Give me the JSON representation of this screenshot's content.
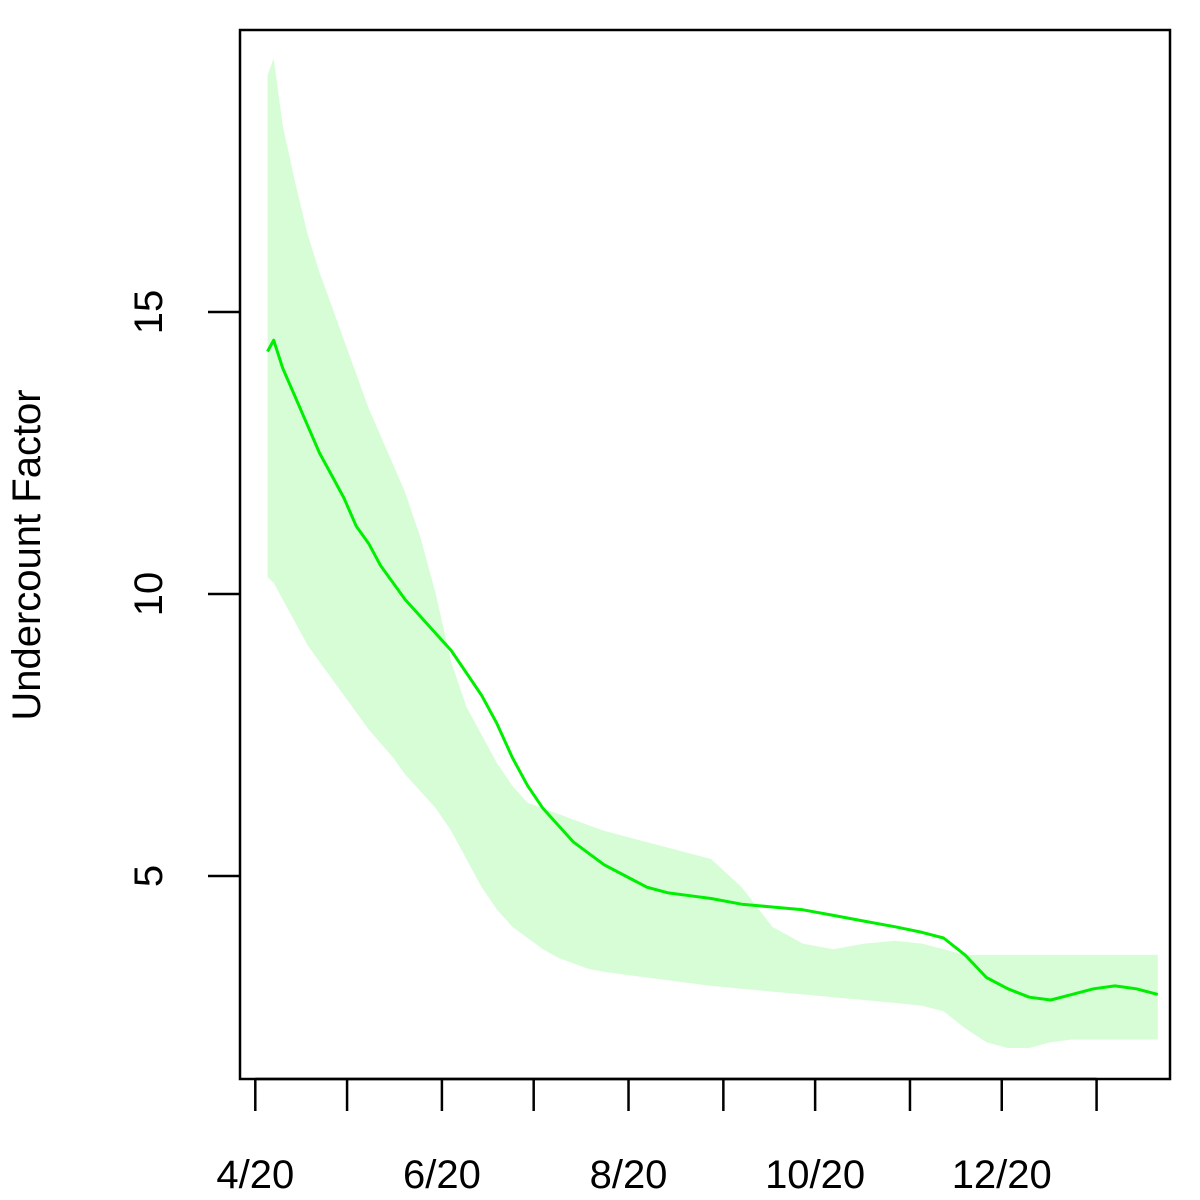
{
  "chart_data": {
    "type": "line",
    "title": "",
    "xlabel": "",
    "ylabel": "Undercount Factor",
    "xlim": [
      "2020-03-27",
      "2021-01-25"
    ],
    "ylim": [
      1.4,
      20.0
    ],
    "grid": false,
    "legend": "none",
    "x_ticks": [
      {
        "date": "2020-04-01",
        "label": "4/20"
      },
      {
        "date": "2020-05-01",
        "label": ""
      },
      {
        "date": "2020-06-01",
        "label": "6/20"
      },
      {
        "date": "2020-07-01",
        "label": ""
      },
      {
        "date": "2020-08-01",
        "label": "8/20"
      },
      {
        "date": "2020-09-01",
        "label": ""
      },
      {
        "date": "2020-10-01",
        "label": "10/20"
      },
      {
        "date": "2020-11-01",
        "label": ""
      },
      {
        "date": "2020-12-01",
        "label": "12/20"
      },
      {
        "date": "2021-01-01",
        "label": ""
      }
    ],
    "y_ticks": [
      5,
      10,
      15
    ],
    "colors": {
      "line": "#00ee00",
      "band": "#d7fdd7"
    },
    "series": [
      {
        "x": [
          "2020-04-05",
          "2020-04-07",
          "2020-04-10",
          "2020-04-14",
          "2020-04-18",
          "2020-04-22",
          "2020-04-26",
          "2020-04-30",
          "2020-05-04",
          "2020-05-08",
          "2020-05-12",
          "2020-05-16",
          "2020-05-20",
          "2020-05-25",
          "2020-05-30",
          "2020-06-04",
          "2020-06-09",
          "2020-06-14",
          "2020-06-19",
          "2020-06-24",
          "2020-06-29",
          "2020-07-04",
          "2020-07-09",
          "2020-07-14",
          "2020-07-19",
          "2020-07-24",
          "2020-07-31",
          "2020-08-07",
          "2020-08-14",
          "2020-08-21",
          "2020-08-28",
          "2020-09-07",
          "2020-09-17",
          "2020-09-27",
          "2020-10-07",
          "2020-10-17",
          "2020-10-27",
          "2020-11-05",
          "2020-11-12",
          "2020-11-19",
          "2020-11-26",
          "2020-12-03",
          "2020-12-10",
          "2020-12-17",
          "2020-12-24",
          "2020-12-31",
          "2021-01-07",
          "2021-01-14",
          "2021-01-21"
        ],
        "y": [
          14.3,
          14.5,
          14.0,
          13.5,
          13.0,
          12.5,
          12.1,
          11.7,
          11.2,
          10.9,
          10.5,
          10.2,
          9.9,
          9.6,
          9.3,
          9.0,
          8.6,
          8.2,
          7.7,
          7.1,
          6.6,
          6.2,
          5.9,
          5.6,
          5.4,
          5.2,
          5.0,
          4.8,
          4.7,
          4.65,
          4.6,
          4.5,
          4.45,
          4.4,
          4.3,
          4.2,
          4.1,
          4.0,
          3.9,
          3.6,
          3.2,
          3.0,
          2.85,
          2.8,
          2.9,
          3.0,
          3.05,
          3.0,
          2.9
        ]
      }
    ],
    "band": {
      "upper": [
        19.2,
        19.5,
        18.3,
        17.3,
        16.4,
        15.7,
        15.1,
        14.5,
        13.9,
        13.3,
        12.8,
        12.3,
        11.8,
        11.0,
        10.0,
        8.8,
        8.0,
        7.5,
        7.0,
        6.6,
        6.3,
        6.2,
        6.1,
        6.0,
        5.9,
        5.8,
        5.7,
        5.6,
        5.5,
        5.4,
        5.3,
        4.8,
        4.1,
        3.8,
        3.7,
        3.8,
        3.85,
        3.8,
        3.7,
        3.6,
        3.6,
        3.6,
        3.6,
        3.6,
        3.6,
        3.6,
        3.6,
        3.6,
        3.6
      ],
      "lower": [
        10.3,
        10.2,
        9.9,
        9.5,
        9.1,
        8.8,
        8.5,
        8.2,
        7.9,
        7.6,
        7.35,
        7.1,
        6.8,
        6.5,
        6.2,
        5.8,
        5.3,
        4.8,
        4.4,
        4.1,
        3.9,
        3.7,
        3.55,
        3.45,
        3.35,
        3.3,
        3.25,
        3.2,
        3.15,
        3.1,
        3.05,
        3.0,
        2.95,
        2.9,
        2.85,
        2.8,
        2.75,
        2.7,
        2.6,
        2.3,
        2.05,
        1.95,
        1.95,
        2.05,
        2.1,
        2.1,
        2.1,
        2.1,
        2.1
      ]
    }
  }
}
